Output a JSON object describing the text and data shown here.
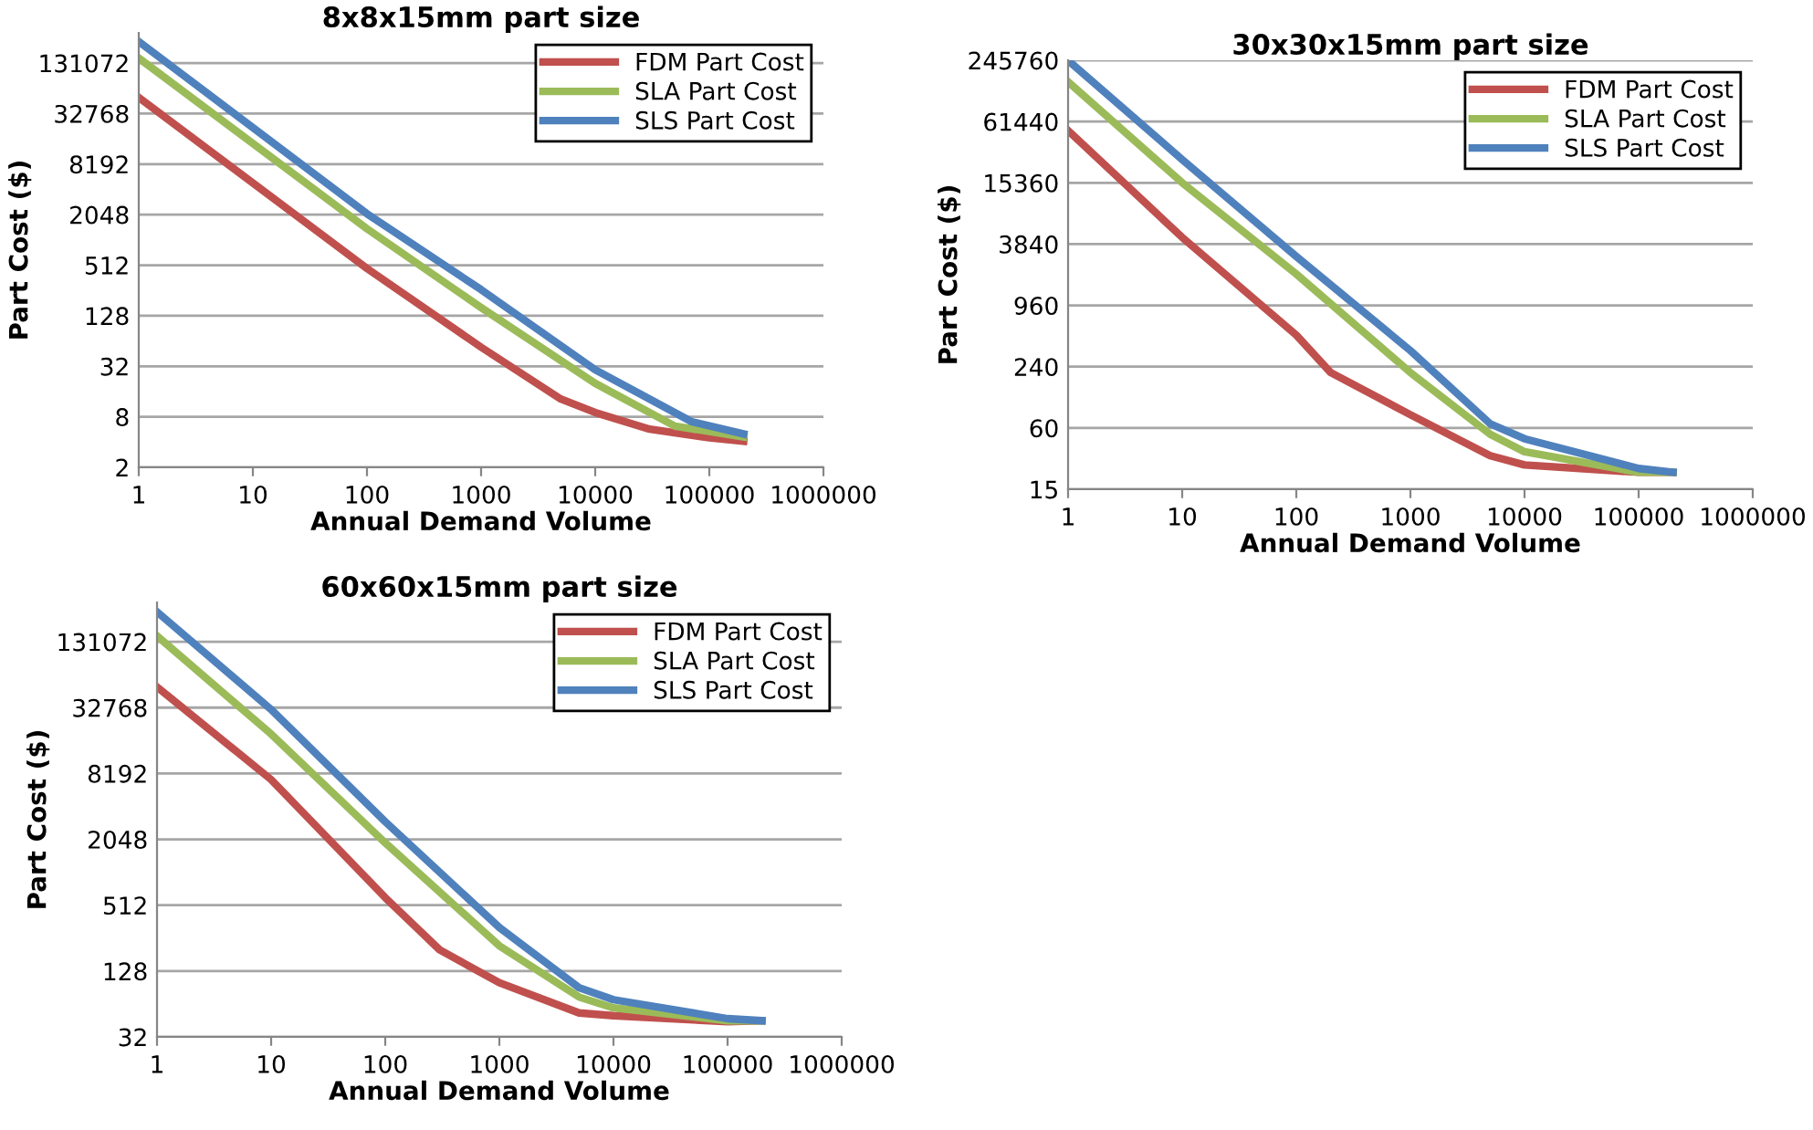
{
  "chart_data": [
    {
      "type": "line",
      "title": "8x8x15mm part size",
      "xlabel": "Annual Demand Volume",
      "ylabel": "Part Cost ($)",
      "log": "xy",
      "grid": "y",
      "legend": "top right",
      "xlim": [
        1,
        1000000
      ],
      "xticks": [
        1,
        10,
        100,
        1000,
        10000,
        100000,
        1000000
      ],
      "ylim": [
        2,
        300000
      ],
      "yticks": [
        2,
        8,
        32,
        128,
        512,
        2048,
        8192,
        32768,
        131072
      ],
      "series": [
        {
          "name": "FDM Part Cost",
          "color": "#c0504d",
          "x": [
            1,
            100,
            1000,
            5000,
            10000,
            30000,
            100000,
            200000
          ],
          "values": [
            51000,
            468,
            54,
            13,
            9,
            5.7,
            4.5,
            4.1
          ]
        },
        {
          "name": "SLA Part Cost",
          "color": "#9bbb59",
          "x": [
            1,
            100,
            1000,
            10000,
            50000,
            200000
          ],
          "values": [
            150000,
            1390,
            160,
            20,
            6.2,
            4.6
          ]
        },
        {
          "name": "SLS Part Cost",
          "color": "#4f81bd",
          "x": [
            1,
            100,
            1000,
            10000,
            70000,
            200000
          ],
          "values": [
            236000,
            2100,
            262,
            29,
            7,
            5
          ]
        }
      ]
    },
    {
      "type": "line",
      "title": "30x30x15mm part size",
      "xlabel": "Annual Demand Volume",
      "ylabel": "Part Cost ($)",
      "log": "xy",
      "grid": "y",
      "legend": "top right",
      "xlim": [
        1,
        1000000
      ],
      "xticks": [
        1,
        10,
        100,
        1000,
        10000,
        100000,
        1000000
      ],
      "ylim": [
        15,
        245760
      ],
      "yticks": [
        15,
        60,
        240,
        960,
        3840,
        15360,
        61440,
        245760
      ],
      "series": [
        {
          "name": "FDM Part Cost",
          "color": "#c0504d",
          "x": [
            1,
            10,
            100,
            200,
            1000,
            5000,
            10000,
            100000,
            200000
          ],
          "values": [
            50000,
            4470,
            490,
            210,
            81,
            32,
            26,
            22,
            22
          ]
        },
        {
          "name": "SLA Part Cost",
          "color": "#9bbb59",
          "x": [
            1,
            10,
            100,
            1000,
            5000,
            10000,
            100000,
            200000
          ],
          "values": [
            151000,
            15400,
            1950,
            210,
            52,
            35,
            22,
            22
          ]
        },
        {
          "name": "SLS Part Cost",
          "color": "#4f81bd",
          "x": [
            1,
            10,
            100,
            1000,
            5000,
            10000,
            100000,
            200000
          ],
          "values": [
            245000,
            26000,
            2900,
            345,
            66,
            47,
            24,
            22
          ]
        }
      ]
    },
    {
      "type": "line",
      "title": "60x60x15mm part size",
      "xlabel": "Annual Demand Volume",
      "ylabel": "Part Cost ($)",
      "log": "xy",
      "grid": "y",
      "legend": "top right",
      "xlim": [
        1,
        1000000
      ],
      "xticks": [
        1,
        10,
        100,
        1000,
        10000,
        100000,
        1000000
      ],
      "ylim": [
        32,
        300000
      ],
      "yticks": [
        32,
        128,
        512,
        2048,
        8192,
        32768,
        131072
      ],
      "series": [
        {
          "name": "FDM Part Cost",
          "color": "#c0504d",
          "x": [
            1,
            10,
            100,
            300,
            1000,
            5000,
            10000,
            100000,
            200000
          ],
          "values": [
            50600,
            7200,
            600,
            200,
            100,
            53,
            50,
            44,
            45
          ]
        },
        {
          "name": "SLA Part Cost",
          "color": "#9bbb59",
          "x": [
            1,
            10,
            100,
            1000,
            5000,
            10000,
            100000,
            200000
          ],
          "values": [
            148000,
            18800,
            1900,
            218,
            74,
            59,
            45,
            45
          ]
        },
        {
          "name": "SLS Part Cost",
          "color": "#4f81bd",
          "x": [
            1,
            10,
            100,
            1000,
            5000,
            10000,
            100000,
            200000
          ],
          "values": [
            246000,
            31500,
            2970,
            320,
            90,
            70,
            47,
            45
          ]
        }
      ]
    }
  ]
}
